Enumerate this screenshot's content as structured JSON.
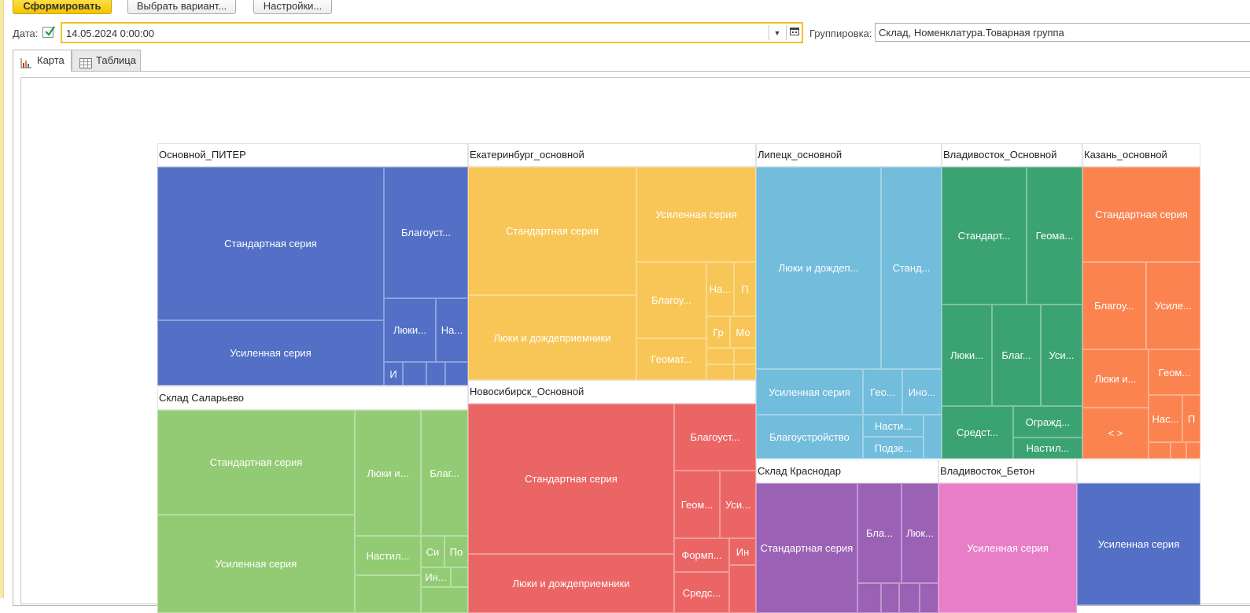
{
  "toolbar": {
    "generate_label": "Сформировать",
    "variant_label": "Выбрать вариант...",
    "settings_label": "Настройки..."
  },
  "date": {
    "label": "Дата:",
    "checked": true,
    "value": "14.05.2024  0:00:00"
  },
  "grouping": {
    "label": "Группировка:",
    "value": "Склад, Номенклатура.Товарная группа"
  },
  "tabs": [
    {
      "label": "Карта",
      "icon": "chart-icon",
      "active": true
    },
    {
      "label": "Таблица",
      "icon": "table-icon",
      "active": false
    }
  ],
  "colors": {
    "blue": "#536fc6",
    "yellow": "#f8c656",
    "lightblue": "#72bcdc",
    "green": "#3aa371",
    "orange": "#fb8350",
    "lightgreen": "#93cb74",
    "red": "#ec6565",
    "purple": "#9b61b5",
    "pink": "#e97ec8",
    "accent": "#f3c321"
  },
  "treemap": {
    "groups": [
      {
        "name": "Основной_ПИТЕР",
        "color": "blue",
        "items": [
          "Стандартная серия",
          "Усиленная серия",
          "Благоуст...",
          "Люки...",
          "На...",
          "И"
        ]
      },
      {
        "name": "Екатеринбург_основной",
        "color": "yellow",
        "items": [
          "Стандартная серия",
          "Люки и дождеприемники",
          "Усиленная серия",
          "Благоу...",
          "На...",
          "П",
          "Гр",
          "Мо",
          "Геомат..."
        ]
      },
      {
        "name": "Липецк_основной",
        "color": "lightblue",
        "items": [
          "Люки и дождеп...",
          "Станд...",
          "Усиленная серия",
          "Гео...",
          "Ино...",
          "Благоустройство",
          "Насти...",
          "Подзе..."
        ]
      },
      {
        "name": "Владивосток_Основной",
        "color": "green",
        "items": [
          "Стандарт...",
          "Геома...",
          "Люки...",
          "Благ...",
          "Уси...",
          "Средст...",
          "Огражд...",
          "Настил..."
        ]
      },
      {
        "name": "Казань_основной",
        "color": "orange",
        "items": [
          "Стандартная серия",
          "Благоу...",
          "Усиле...",
          "Люки и...",
          "Геом...",
          "< >",
          "Нас...",
          "П"
        ]
      },
      {
        "name": "Склад Саларьево",
        "color": "lightgreen",
        "items": [
          "Стандартная серия",
          "Усиленная серия",
          "Люки и...",
          "Благ...",
          "Настил...",
          "Си",
          "По",
          "Ин..."
        ]
      },
      {
        "name": "Новосибирск_Основной",
        "color": "red",
        "items": [
          "Стандартная серия",
          "Люки и дождеприемники",
          "Благоуст...",
          "Геом...",
          "Уси...",
          "Формп...",
          "Ин",
          "Средс..."
        ]
      },
      {
        "name": "Склад Краснодар",
        "color": "purple",
        "items": [
          "Стандартная серия",
          "Бла...",
          "Люк..."
        ]
      },
      {
        "name": "Владивосток_Бетон",
        "color": "pink",
        "items": [
          "Усиленная серия"
        ]
      },
      {
        "name": "",
        "color": "blue",
        "items": [
          "Усиленная серия"
        ]
      }
    ]
  }
}
